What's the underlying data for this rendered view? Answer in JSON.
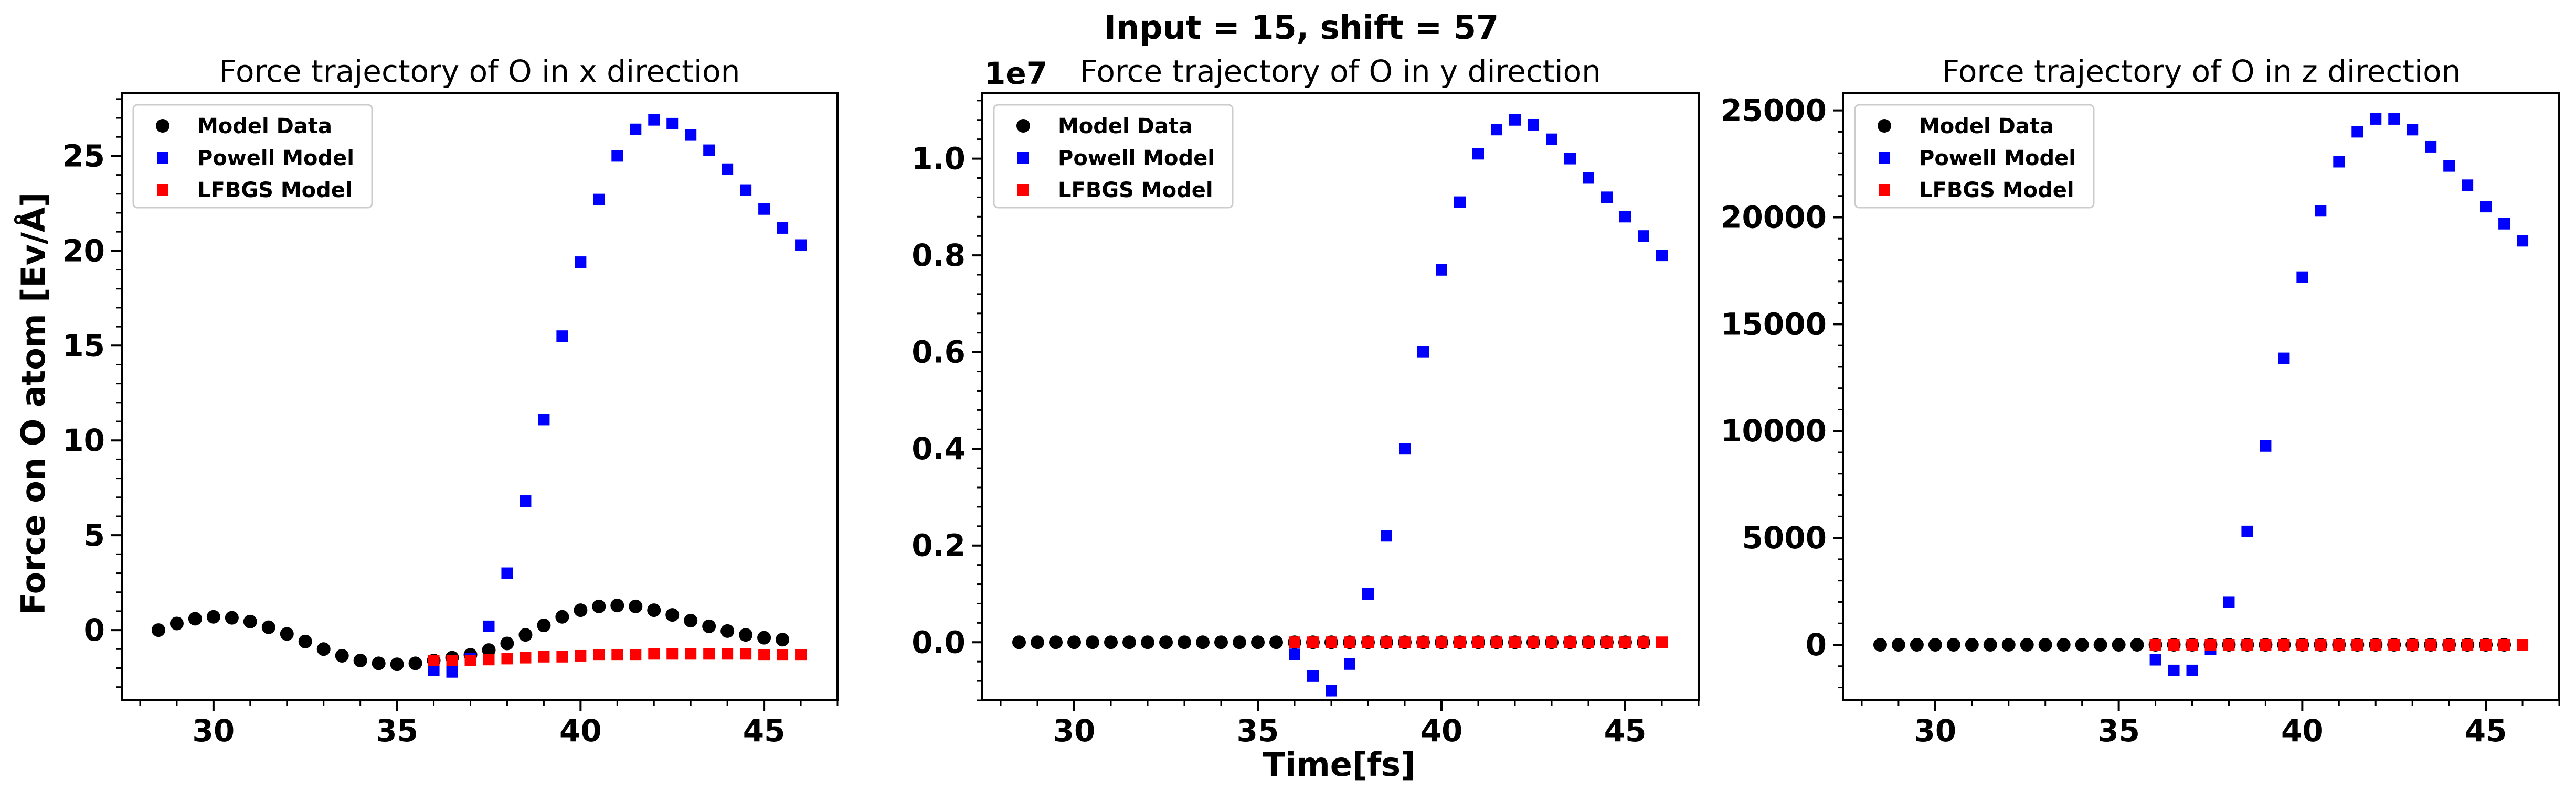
{
  "figure": {
    "suptitle": "Input = 15, shift = 57",
    "ylabel": "Force on O atom [Ev/Å]",
    "xlabel": "Time[fs]"
  },
  "legend": [
    "Model Data",
    "Powell Model",
    "LFBGS Model"
  ],
  "colors": {
    "model_data": "#000000",
    "powell": "#0000ff",
    "lfbgs": "#ff0000"
  },
  "chart_data": [
    {
      "type": "scatter",
      "title": "Force trajectory of O in x direction",
      "xlim": [
        27.5,
        47
      ],
      "ylim": [
        -3.7,
        28.3
      ],
      "xticks": [
        "30",
        "35",
        "40",
        "45"
      ],
      "yticks": [
        "0",
        "5",
        "10",
        "15",
        "20",
        "25"
      ],
      "offset_text": "",
      "legend_position": "upper left",
      "series": [
        {
          "name": "Model Data",
          "x": [
            28.5,
            29.0,
            29.5,
            30.0,
            30.5,
            31.0,
            31.5,
            32.0,
            32.5,
            33.0,
            33.5,
            34.0,
            34.5,
            35.0,
            35.5,
            36.0,
            36.5,
            37.0,
            37.5,
            38.0,
            38.5,
            39.0,
            39.5,
            40.0,
            40.5,
            41.0,
            41.5,
            42.0,
            42.5,
            43.0,
            43.5,
            44.0,
            44.5,
            45.0,
            45.5
          ],
          "y": [
            0.0,
            0.35,
            0.6,
            0.7,
            0.65,
            0.45,
            0.15,
            -0.2,
            -0.6,
            -1.0,
            -1.35,
            -1.6,
            -1.75,
            -1.8,
            -1.75,
            -1.6,
            -1.45,
            -1.3,
            -1.05,
            -0.7,
            -0.25,
            0.25,
            0.7,
            1.05,
            1.25,
            1.3,
            1.25,
            1.05,
            0.8,
            0.5,
            0.2,
            -0.05,
            -0.25,
            -0.4,
            -0.5
          ]
        },
        {
          "name": "Powell Model",
          "x": [
            36.0,
            36.5,
            37.0,
            37.5,
            38.0,
            38.5,
            39.0,
            39.5,
            40.0,
            40.5,
            41.0,
            41.5,
            42.0,
            42.5,
            43.0,
            43.5,
            44.0,
            44.5,
            45.0,
            45.5,
            46.0
          ],
          "y": [
            -2.1,
            -2.2,
            -1.5,
            0.2,
            3.0,
            6.8,
            11.1,
            15.5,
            19.4,
            22.7,
            25.0,
            26.4,
            26.9,
            26.7,
            26.1,
            25.3,
            24.3,
            23.2,
            22.2,
            21.2,
            20.3
          ]
        },
        {
          "name": "LFBGS Model",
          "x": [
            36.0,
            36.5,
            37.0,
            37.5,
            38.0,
            38.5,
            39.0,
            39.5,
            40.0,
            40.5,
            41.0,
            41.5,
            42.0,
            42.5,
            43.0,
            43.5,
            44.0,
            44.5,
            45.0,
            45.5,
            46.0
          ],
          "y": [
            -1.6,
            -1.6,
            -1.6,
            -1.55,
            -1.5,
            -1.45,
            -1.4,
            -1.4,
            -1.35,
            -1.3,
            -1.3,
            -1.3,
            -1.25,
            -1.25,
            -1.25,
            -1.25,
            -1.25,
            -1.25,
            -1.3,
            -1.3,
            -1.3
          ]
        }
      ]
    },
    {
      "type": "scatter",
      "title": "Force trajectory of O in y direction",
      "xlim": [
        27.5,
        47
      ],
      "ylim": [
        -0.12,
        1.135
      ],
      "xticks": [
        "30",
        "35",
        "40",
        "45"
      ],
      "yticks": [
        "0.0",
        "0.2",
        "0.4",
        "0.6",
        "0.8",
        "1.0"
      ],
      "offset_text": "1e7",
      "legend_position": "upper left",
      "series": [
        {
          "name": "Model Data",
          "x": [
            28.5,
            29.0,
            29.5,
            30.0,
            30.5,
            31.0,
            31.5,
            32.0,
            32.5,
            33.0,
            33.5,
            34.0,
            34.5,
            35.0,
            35.5,
            36.0,
            36.5,
            37.0,
            37.5,
            38.0,
            38.5,
            39.0,
            39.5,
            40.0,
            40.5,
            41.0,
            41.5,
            42.0,
            42.5,
            43.0,
            43.5,
            44.0,
            44.5,
            45.0,
            45.5
          ],
          "y": [
            0,
            0,
            0,
            0,
            0,
            0,
            0,
            0,
            0,
            0,
            0,
            0,
            0,
            0,
            0,
            0,
            0,
            0,
            0,
            0,
            0,
            0,
            0,
            0,
            0,
            0,
            0,
            0,
            0,
            0,
            0,
            0,
            0,
            0,
            0
          ]
        },
        {
          "name": "Powell Model",
          "x": [
            36.0,
            36.5,
            37.0,
            37.5,
            38.0,
            38.5,
            39.0,
            39.5,
            40.0,
            40.5,
            41.0,
            41.5,
            42.0,
            42.5,
            43.0,
            43.5,
            44.0,
            44.5,
            45.0,
            45.5,
            46.0
          ],
          "y": [
            -0.025,
            -0.07,
            -0.1,
            -0.045,
            0.1,
            0.22,
            0.4,
            0.6,
            0.77,
            0.91,
            1.01,
            1.06,
            1.08,
            1.07,
            1.04,
            1.0,
            0.96,
            0.92,
            0.88,
            0.84,
            0.8
          ]
        },
        {
          "name": "LFBGS Model",
          "x": [
            36.0,
            36.5,
            37.0,
            37.5,
            38.0,
            38.5,
            39.0,
            39.5,
            40.0,
            40.5,
            41.0,
            41.5,
            42.0,
            42.5,
            43.0,
            43.5,
            44.0,
            44.5,
            45.0,
            45.5,
            46.0
          ],
          "y": [
            0,
            0,
            0,
            0,
            0,
            0,
            0,
            0,
            0,
            0,
            0,
            0,
            0,
            0,
            0,
            0,
            0,
            0,
            0,
            0,
            0
          ]
        }
      ]
    },
    {
      "type": "scatter",
      "title": "Force trajectory of O in z direction",
      "xlim": [
        27.5,
        47
      ],
      "ylim": [
        -2600,
        25800
      ],
      "xticks": [
        "30",
        "35",
        "40",
        "45"
      ],
      "yticks": [
        "0",
        "5000",
        "10000",
        "15000",
        "20000",
        "25000"
      ],
      "offset_text": "",
      "legend_position": "upper left",
      "series": [
        {
          "name": "Model Data",
          "x": [
            28.5,
            29.0,
            29.5,
            30.0,
            30.5,
            31.0,
            31.5,
            32.0,
            32.5,
            33.0,
            33.5,
            34.0,
            34.5,
            35.0,
            35.5,
            36.0,
            36.5,
            37.0,
            37.5,
            38.0,
            38.5,
            39.0,
            39.5,
            40.0,
            40.5,
            41.0,
            41.5,
            42.0,
            42.5,
            43.0,
            43.5,
            44.0,
            44.5,
            45.0,
            45.5
          ],
          "y": [
            0,
            0,
            0,
            0,
            0,
            0,
            0,
            0,
            0,
            0,
            0,
            0,
            0,
            0,
            0,
            0,
            0,
            0,
            0,
            0,
            0,
            0,
            0,
            0,
            0,
            0,
            0,
            0,
            0,
            0,
            0,
            0,
            0,
            0,
            0
          ]
        },
        {
          "name": "Powell Model",
          "x": [
            36.0,
            36.5,
            37.0,
            37.5,
            38.0,
            38.5,
            39.0,
            39.5,
            40.0,
            40.5,
            41.0,
            41.5,
            42.0,
            42.5,
            43.0,
            43.5,
            44.0,
            44.5,
            45.0,
            45.5,
            46.0
          ],
          "y": [
            -700,
            -1200,
            -1200,
            -200,
            2000,
            5300,
            9300,
            13400,
            17200,
            20300,
            22600,
            24000,
            24600,
            24600,
            24100,
            23300,
            22400,
            21500,
            20500,
            19700,
            18900
          ]
        },
        {
          "name": "LFBGS Model",
          "x": [
            36.0,
            36.5,
            37.0,
            37.5,
            38.0,
            38.5,
            39.0,
            39.5,
            40.0,
            40.5,
            41.0,
            41.5,
            42.0,
            42.5,
            43.0,
            43.5,
            44.0,
            44.5,
            45.0,
            45.5,
            46.0
          ],
          "y": [
            0,
            0,
            0,
            0,
            0,
            0,
            0,
            0,
            0,
            0,
            0,
            0,
            0,
            0,
            0,
            0,
            0,
            0,
            0,
            0,
            0
          ]
        }
      ]
    }
  ]
}
